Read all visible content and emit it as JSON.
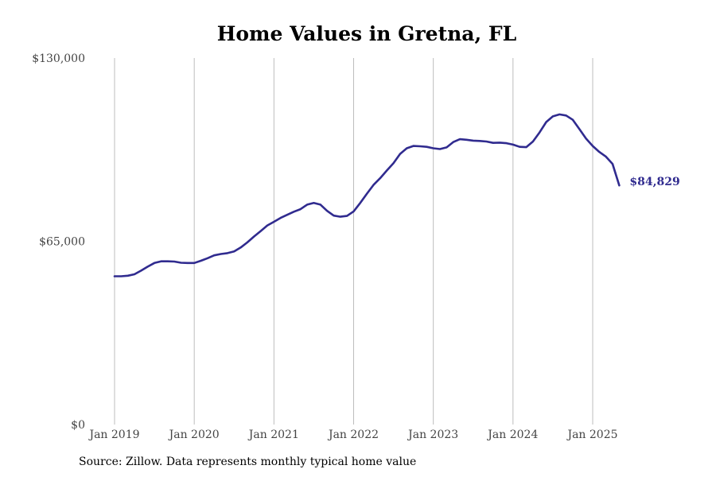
{
  "chart_data": {
    "type": "line",
    "title": "Home Values in Gretna, FL",
    "xlabel": "",
    "ylabel": "",
    "ylim": [
      0,
      130000
    ],
    "yticks": [
      0,
      65000,
      130000
    ],
    "ytick_labels": [
      "$0",
      "$65,000",
      "$130,000"
    ],
    "xticks": [
      "2019-01",
      "2020-01",
      "2021-01",
      "2022-01",
      "2023-01",
      "2024-01",
      "2025-01"
    ],
    "xtick_labels": [
      "Jan 2019",
      "Jan 2020",
      "Jan 2021",
      "Jan 2022",
      "Jan 2023",
      "Jan 2024",
      "Jan 2025"
    ],
    "grid": "vertical",
    "series": [
      {
        "color": "#302b8f",
        "x": [
          "2019-01",
          "2019-02",
          "2019-03",
          "2019-04",
          "2019-05",
          "2019-06",
          "2019-07",
          "2019-08",
          "2019-09",
          "2019-10",
          "2019-11",
          "2019-12",
          "2020-01",
          "2020-02",
          "2020-03",
          "2020-04",
          "2020-05",
          "2020-06",
          "2020-07",
          "2020-08",
          "2020-09",
          "2020-10",
          "2020-11",
          "2020-12",
          "2021-01",
          "2021-02",
          "2021-03",
          "2021-04",
          "2021-05",
          "2021-06",
          "2021-07",
          "2021-08",
          "2021-09",
          "2021-10",
          "2021-11",
          "2021-12",
          "2022-01",
          "2022-02",
          "2022-03",
          "2022-04",
          "2022-05",
          "2022-06",
          "2022-07",
          "2022-08",
          "2022-09",
          "2022-10",
          "2022-11",
          "2022-12",
          "2023-01",
          "2023-02",
          "2023-03",
          "2023-04",
          "2023-05",
          "2023-06",
          "2023-07",
          "2023-08",
          "2023-09",
          "2023-10",
          "2023-11",
          "2023-12",
          "2024-01",
          "2024-02",
          "2024-03",
          "2024-04",
          "2024-05",
          "2024-06",
          "2024-07",
          "2024-08",
          "2024-09",
          "2024-10",
          "2024-11",
          "2024-12",
          "2025-01",
          "2025-02",
          "2025-03",
          "2025-04",
          "2025-05"
        ],
        "values": [
          52600,
          52600,
          52800,
          53300,
          54600,
          56000,
          57300,
          57900,
          57900,
          57800,
          57400,
          57300,
          57300,
          58100,
          59000,
          60000,
          60500,
          60800,
          61400,
          62800,
          64600,
          66700,
          68600,
          70600,
          71900,
          73300,
          74400,
          75500,
          76400,
          78000,
          78600,
          78000,
          75800,
          74100,
          73700,
          74000,
          75600,
          78600,
          81900,
          85000,
          87400,
          90100,
          92700,
          96000,
          98000,
          98800,
          98700,
          98500,
          98000,
          97700,
          98300,
          100200,
          101200,
          101000,
          100700,
          100600,
          100400,
          99900,
          100000,
          99800,
          99300,
          98500,
          98400,
          100400,
          103600,
          107300,
          109300,
          110000,
          109600,
          108100,
          104800,
          101400,
          98800,
          96700,
          95000,
          92400,
          84829
        ],
        "end_label": "$84,829"
      }
    ]
  },
  "source": "Source: Zillow. Data represents monthly typical home value"
}
